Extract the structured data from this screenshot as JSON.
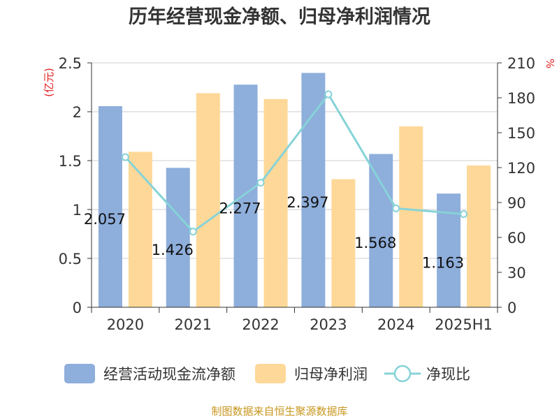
{
  "chart_data": {
    "type": "bar",
    "title": "历年经营现金净额、归母净利润情况",
    "left_unit": "(亿元)",
    "right_unit": "%",
    "categories": [
      "2020",
      "2021",
      "2022",
      "2023",
      "2024",
      "2025H1"
    ],
    "series": [
      {
        "name": "经营活动现金流净额",
        "type": "bar",
        "axis": "left",
        "color": "#8eaedb",
        "values": [
          2.057,
          1.426,
          2.277,
          2.397,
          1.568,
          1.163
        ],
        "labels": [
          "2.057",
          "1.426",
          "2.277",
          "2.397",
          "1.568",
          "1.163"
        ]
      },
      {
        "name": "归母净利润",
        "type": "bar",
        "axis": "left",
        "color": "#fed898",
        "values": [
          1.59,
          2.19,
          2.13,
          1.31,
          1.85,
          1.45
        ]
      },
      {
        "name": "净现比",
        "type": "line",
        "axis": "right",
        "color": "#86d3d8",
        "values": [
          129,
          65,
          107,
          183,
          85,
          80
        ]
      }
    ],
    "ylim_left": [
      0,
      2.5
    ],
    "yticks_left": [
      "0",
      "0.5",
      "1",
      "1.5",
      "2",
      "2.5"
    ],
    "ylim_right": [
      0,
      210
    ],
    "yticks_right": [
      "0",
      "30",
      "60",
      "90",
      "120",
      "150",
      "180",
      "210"
    ],
    "grid": true,
    "legend_position": "bottom"
  },
  "source": "制图数据来自恒生聚源数据库"
}
